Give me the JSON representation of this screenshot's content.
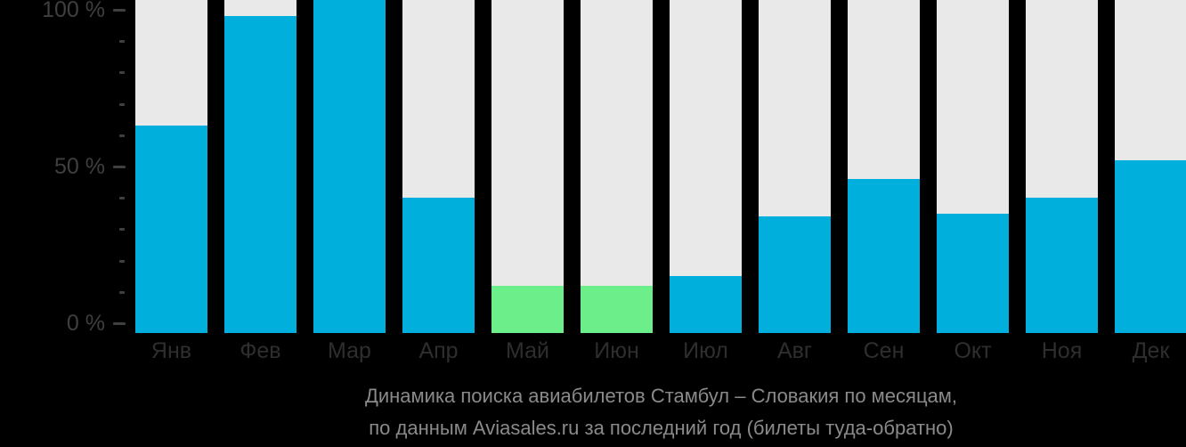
{
  "chart_data": {
    "type": "bar",
    "title_lines": [
      "Динамика поиска авиабилетов Стамбул – Словакия по месяцам,",
      "по данным Aviasales.ru за последний год (билеты туда-обратно)"
    ],
    "categories": [
      "Янв",
      "Фев",
      "Мар",
      "Апр",
      "Май",
      "Июн",
      "Июл",
      "Авг",
      "Сен",
      "Окт",
      "Ноя",
      "Дек"
    ],
    "values": [
      63,
      98,
      103,
      40,
      12,
      12,
      15,
      34,
      46,
      35,
      40,
      52
    ],
    "bar_color_keys": [
      "primary",
      "primary",
      "primary",
      "primary",
      "highlight",
      "highlight",
      "primary",
      "primary",
      "primary",
      "primary",
      "primary",
      "primary"
    ],
    "y_axis": {
      "unit": "%",
      "ylim": [
        0,
        100
      ],
      "major_ticks": [
        {
          "pct": 100,
          "label": "100 %"
        },
        {
          "pct": 50,
          "label": "50 %"
        },
        {
          "pct": 0,
          "label": "0 %"
        }
      ],
      "minor_tick_pcts": [
        90,
        80,
        70,
        60,
        40,
        30,
        20,
        10
      ]
    },
    "legend": null,
    "grid": false,
    "notes": "bar for Мар is clipped at the top edge of the image (exceeds the 100 % tick)",
    "colors": {
      "primary": "#00afdb",
      "highlight": "#6cef8b",
      "bar_background": "#e9e9e9",
      "page_background": "#000000",
      "axis_label": "#3f3f3f",
      "month_label": "#2e2e2e",
      "title_text": "#8a8a8a"
    }
  }
}
